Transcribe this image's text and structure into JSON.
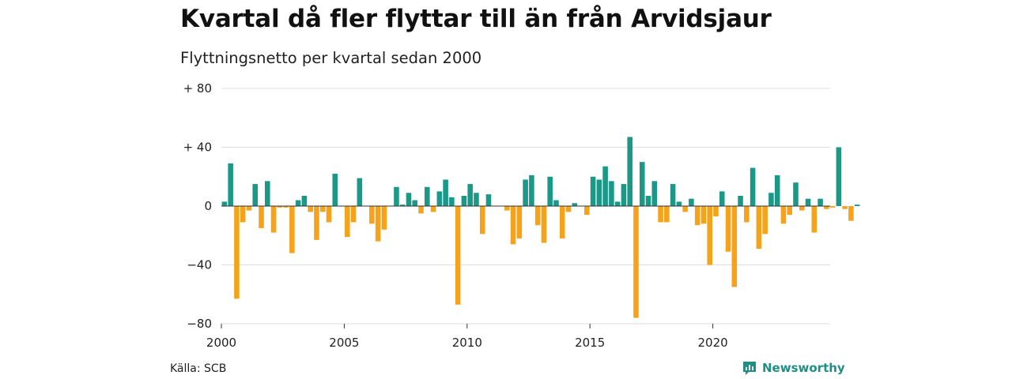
{
  "title": "Kvartal då fler flyttar till än från Arvidsjaur",
  "subtitle": "Flyttningsnetto per kvartal sedan 2000",
  "source": "Källa: SCB",
  "brand": {
    "name": "Newsworthy",
    "icon": "newsworthy-logo-icon"
  },
  "colors": {
    "positive": "#1a9988",
    "negative": "#f5a31a",
    "grid": "#dddddd",
    "zero": "#333333"
  },
  "chart_data": {
    "type": "bar",
    "title": "Kvartal då fler flyttar till än från Arvidsjaur",
    "subtitle": "Flyttningsnetto per kvartal sedan 2000",
    "xlabel": "",
    "ylabel": "",
    "ylim": [
      -80,
      80
    ],
    "yticks": [
      {
        "value": 80,
        "label": "+ 80"
      },
      {
        "value": 40,
        "label": "+ 40"
      },
      {
        "value": 0,
        "label": "0"
      },
      {
        "value": -40,
        "label": "−40"
      },
      {
        "value": -80,
        "label": "−80"
      }
    ],
    "xticks": [
      {
        "year": 2000,
        "label": "2000"
      },
      {
        "year": 2005,
        "label": "2005"
      },
      {
        "year": 2010,
        "label": "2010"
      },
      {
        "year": 2015,
        "label": "2015"
      },
      {
        "year": 2020,
        "label": "2020"
      }
    ],
    "start": "2000 Q1",
    "grid": true,
    "legend": "none",
    "values": [
      3,
      29,
      -63,
      -11,
      -3,
      15,
      -15,
      17,
      -18,
      -1,
      -1,
      -32,
      4,
      7,
      -4,
      -23,
      -4,
      -11,
      22,
      0,
      -21,
      -11,
      19,
      0,
      -12,
      -24,
      -16,
      0,
      13,
      1,
      9,
      4,
      -5,
      13,
      -4,
      10,
      18,
      6,
      -67,
      7,
      15,
      9,
      -19,
      8,
      0,
      0,
      -3,
      -26,
      -22,
      18,
      21,
      -13,
      -25,
      20,
      4,
      -22,
      -4,
      2,
      0,
      -6,
      20,
      18,
      27,
      17,
      3,
      15,
      47,
      -76,
      30,
      7,
      17,
      -11,
      -11,
      15,
      3,
      -4,
      5,
      -13,
      -12,
      -40,
      -7,
      10,
      -31,
      -55,
      7,
      -11,
      26,
      -29,
      -19,
      9,
      21,
      -12,
      -6,
      16,
      -3,
      5,
      -18,
      5,
      -2,
      -1,
      40,
      -2,
      -10,
      1
    ]
  }
}
